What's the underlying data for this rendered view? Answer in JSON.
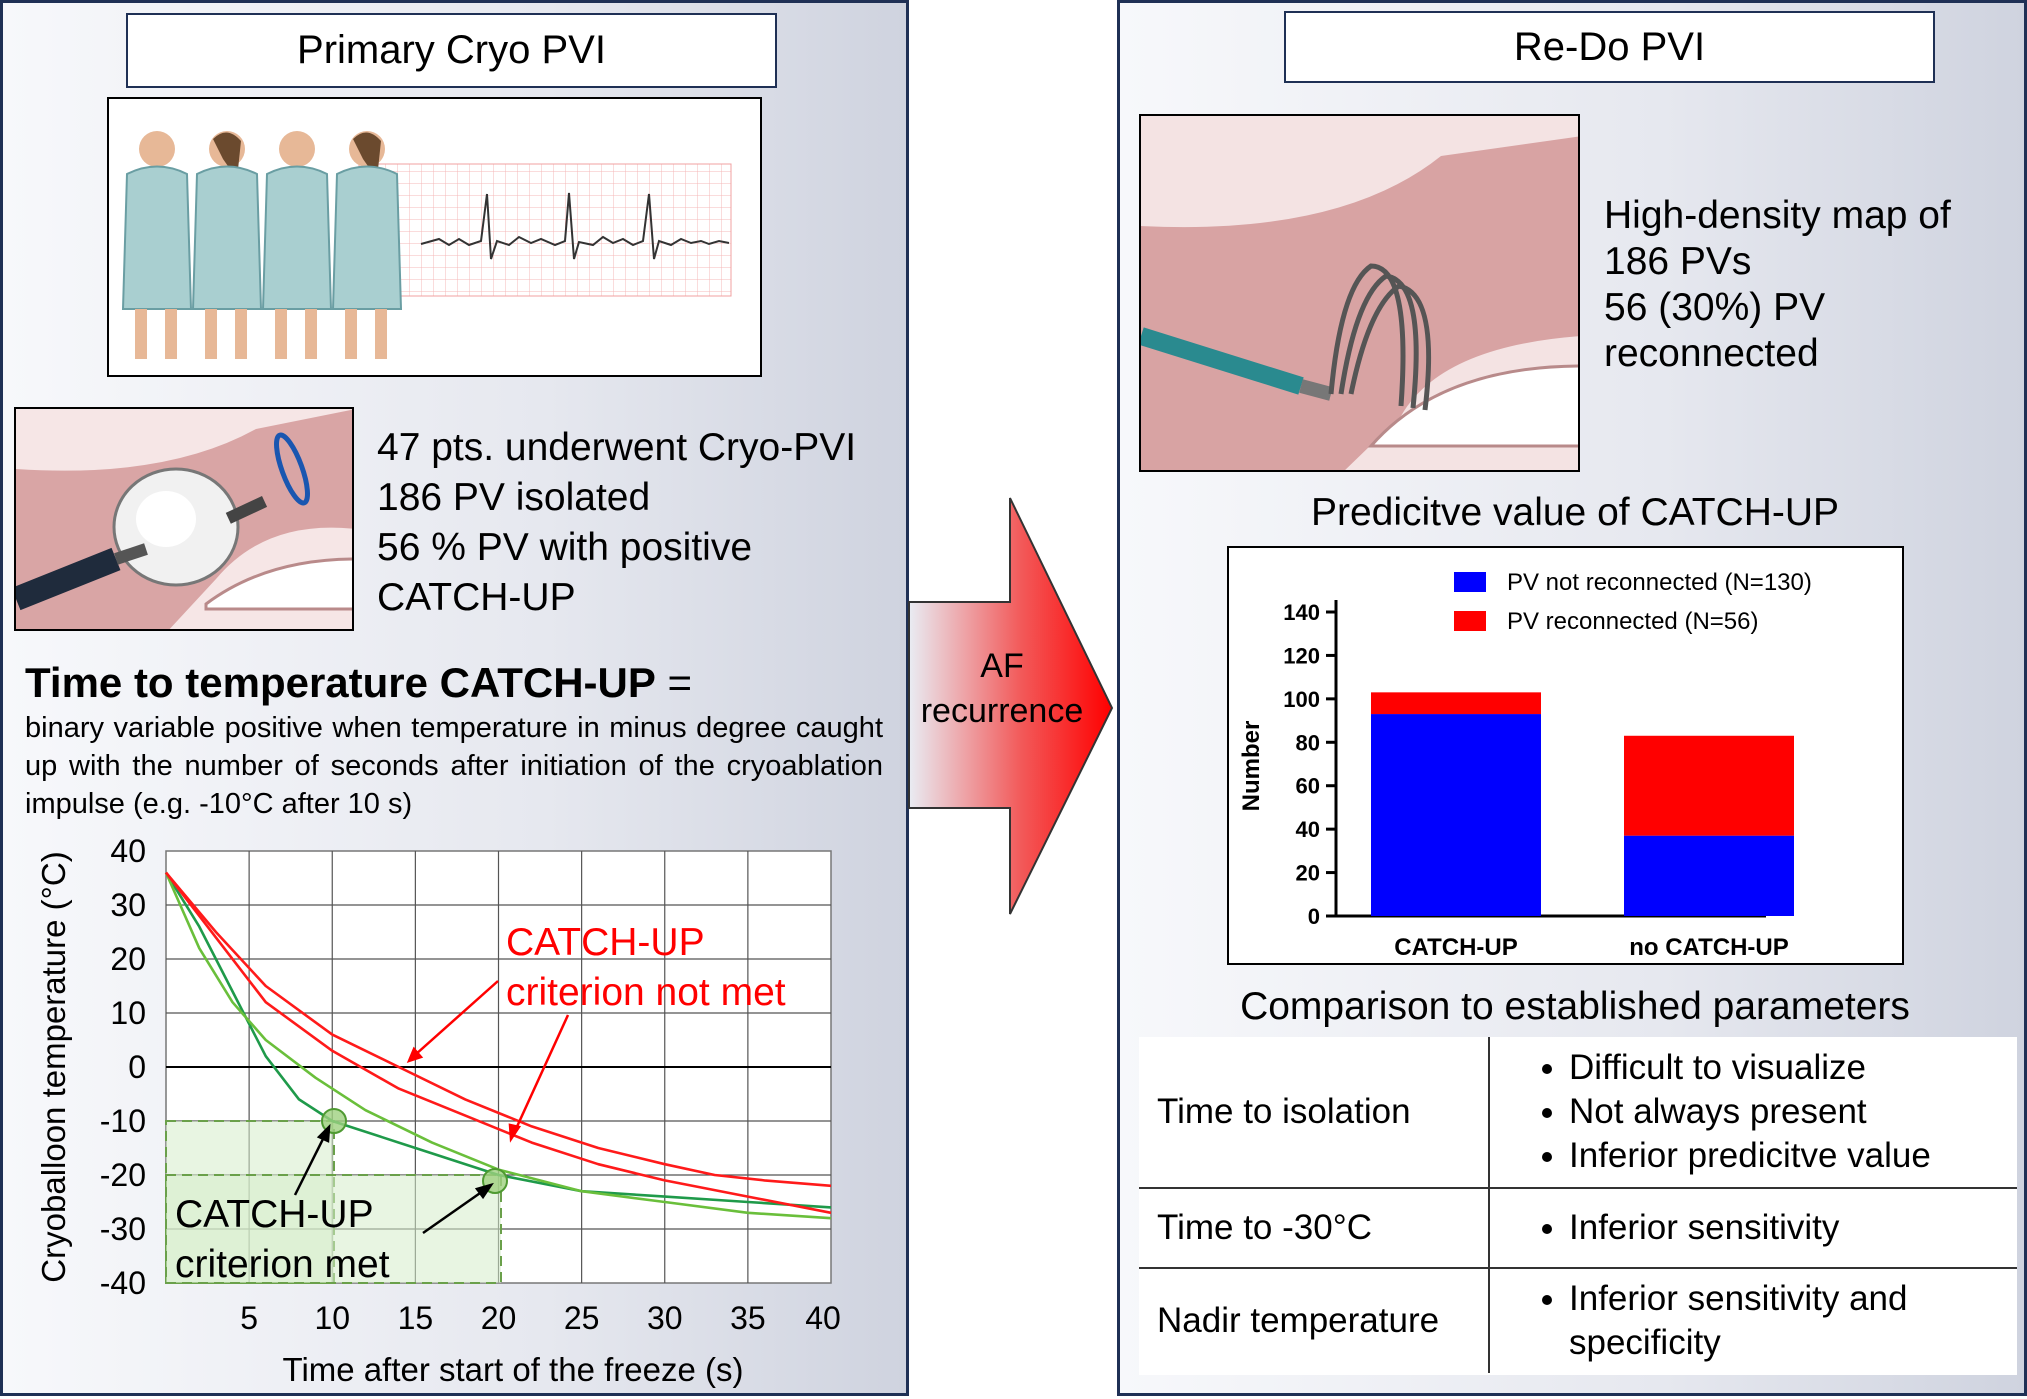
{
  "left_panel": {
    "title": "Primary Cryo PVI",
    "summary_lines": [
      "47 pts. underwent Cryo-PVI",
      "186 PV isolated",
      "56 % PV with positive",
      "CATCH-UP"
    ],
    "definition_heading": "Time to temperature CATCH-UP",
    "definition_eq": " =",
    "definition_text": "binary variable positive when temperature in minus degree caught up with the number of seconds after initiation of the cryoablation impulse (e.g. -10°C after 10 s)"
  },
  "arrow": {
    "line1": "AF",
    "line2": "recurrence"
  },
  "temp_chart": {
    "ylabel": "Cryoballoon temperature (°C)",
    "xlabel": "Time after start of the freeze (s)",
    "y_ticks": [
      "40",
      "30",
      "20",
      "10",
      "0",
      "-10",
      "-20",
      "-30",
      "-40"
    ],
    "x_ticks": [
      "5",
      "10",
      "15",
      "20",
      "25",
      "30",
      "35",
      "40"
    ],
    "annotation_notmet": [
      "CATCH-UP",
      "criterion not met"
    ],
    "annotation_met": [
      "CATCH-UP",
      "criterion met"
    ],
    "colors": {
      "met": "#6abf3b",
      "met_dark": "#1f9a4a",
      "notmet": "#ff1a1a"
    }
  },
  "right_panel": {
    "title": "Re-Do PVI",
    "map_lines": [
      "High-density map of",
      "186 PVs",
      "56 (30%) PV",
      "reconnected"
    ],
    "predictive_title": "Predicitve value of CATCH-UP",
    "comparison_title": "Comparison to established parameters"
  },
  "chart_data": {
    "type": "bar",
    "stacked": true,
    "categories": [
      "CATCH-UP",
      "no CATCH-UP"
    ],
    "series": [
      {
        "name": "PV not reconnected (N=130)",
        "values": [
          93,
          37
        ],
        "color": "#0000ff"
      },
      {
        "name": "PV reconnected (N=56)",
        "values": [
          10,
          46
        ],
        "color": "#ff0000"
      }
    ],
    "ylabel": "Number",
    "ylim": [
      0,
      140
    ],
    "y_ticks": [
      "0",
      "20",
      "40",
      "60",
      "80",
      "100",
      "120",
      "140"
    ],
    "legend": "top-right",
    "grid": false
  },
  "comparison_table": [
    {
      "parameter": "Time to isolation",
      "points": [
        "Difficult to visualize",
        "Not always present",
        "Inferior predicitve value"
      ]
    },
    {
      "parameter": "Time to -30°C",
      "points": [
        "Inferior sensitivity"
      ]
    },
    {
      "parameter": "Nadir temperature",
      "points": [
        "Inferior sensitivity and specificity"
      ]
    }
  ]
}
